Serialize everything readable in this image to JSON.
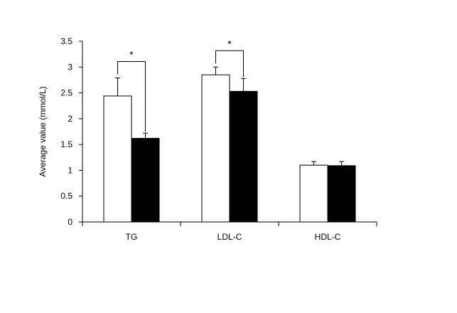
{
  "chart_data": {
    "type": "bar",
    "title": "",
    "xlabel": "",
    "ylabel": "Average value (mmol/L)",
    "ylim": [
      0,
      3.5
    ],
    "yticks": [
      0,
      0.5,
      1,
      1.5,
      2,
      2.5,
      3,
      3.5
    ],
    "ytick_labels": [
      "0",
      "0.5",
      "1",
      "1.5",
      "2",
      "2.5",
      "3",
      "3.5"
    ],
    "categories": [
      "TG",
      "LDL-C",
      "HDL-C"
    ],
    "series": [
      {
        "fill": "#ffffff",
        "values": [
          2.44,
          2.85,
          1.1
        ],
        "errors": [
          0.35,
          0.15,
          0.07
        ]
      },
      {
        "fill": "#000000",
        "values": [
          1.62,
          2.53,
          1.09
        ],
        "errors": [
          0.1,
          0.25,
          0.08
        ]
      }
    ],
    "significance": [
      {
        "category": "TG",
        "label": "*"
      },
      {
        "category": "LDL-C",
        "label": "*"
      }
    ],
    "grid": false,
    "legend": "none"
  }
}
